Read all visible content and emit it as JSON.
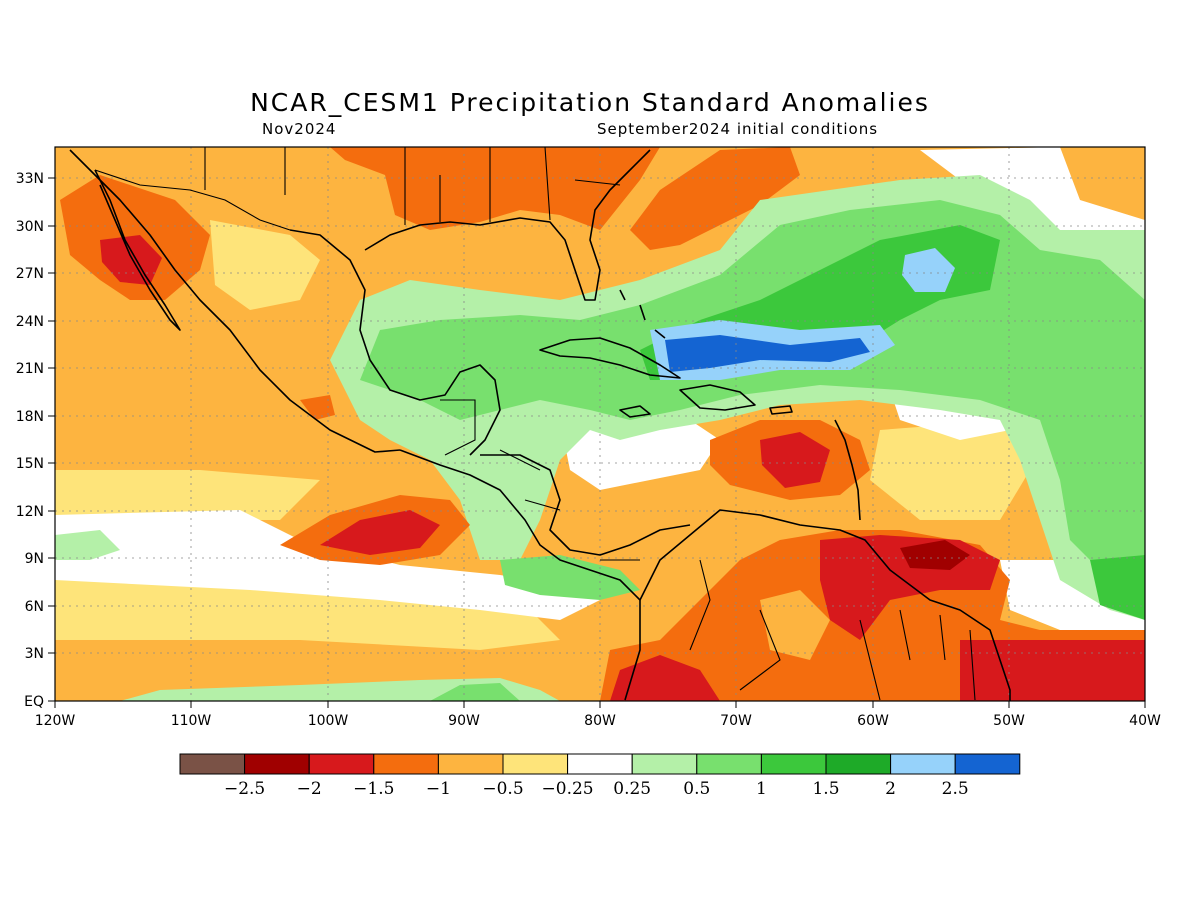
{
  "title": "NCAR_CESM1 Precipitation Standard Anomalies",
  "subtitle_left": "Nov2024",
  "subtitle_right": "September2024 initial conditions",
  "lon_ticks": [
    "120W",
    "110W",
    "100W",
    "90W",
    "80W",
    "70W",
    "60W",
    "50W",
    "40W"
  ],
  "lat_ticks": [
    "33N",
    "30N",
    "27N",
    "24N",
    "21N",
    "18N",
    "15N",
    "12N",
    "9N",
    "6N",
    "3N",
    "EQ"
  ],
  "colorbar": {
    "colors": [
      "#7a5246",
      "#a00000",
      "#d7191c",
      "#f46d0e",
      "#fdb440",
      "#fee47a",
      "#ffffff",
      "#b4f0a8",
      "#78e06e",
      "#3cc83c",
      "#1eaa28",
      "#96d2fa",
      "#1464d2"
    ],
    "labels": [
      "−2.5",
      "−2",
      "−1.5",
      "−1",
      "−0.5",
      "−0.25",
      "0.25",
      "0.5",
      "1",
      "1.5",
      "2",
      "2.5"
    ]
  }
}
